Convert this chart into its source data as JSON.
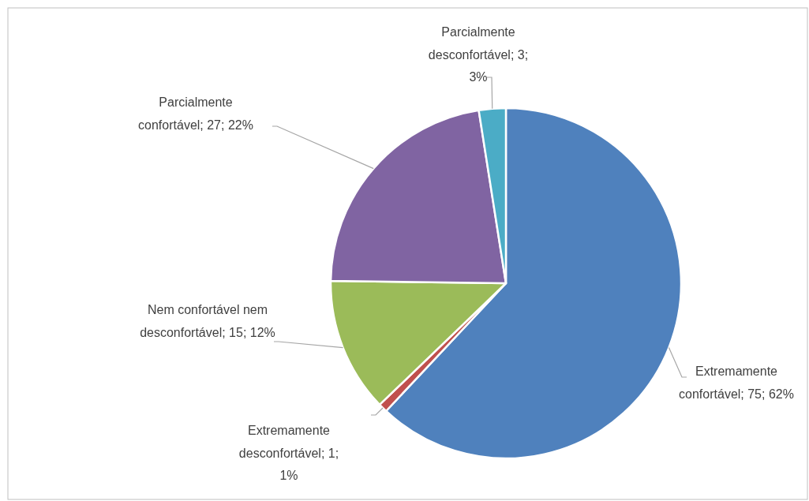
{
  "chart_data": {
    "type": "pie",
    "categories": [
      "Extremamente confortável",
      "Extremamente desconfortável",
      "Nem confortável nem desconfortável",
      "Parcialmente confortável",
      "Parcialmente desconfortável"
    ],
    "values": [
      75,
      1,
      15,
      27,
      3
    ],
    "colors": [
      "#4f81bd",
      "#c0504d",
      "#9bbb59",
      "#8064a2",
      "#4bacc6"
    ],
    "value_labels": [
      "75; 62%",
      "1; 1%",
      "15; 12%",
      "27; 22%",
      "3; 3%"
    ]
  }
}
